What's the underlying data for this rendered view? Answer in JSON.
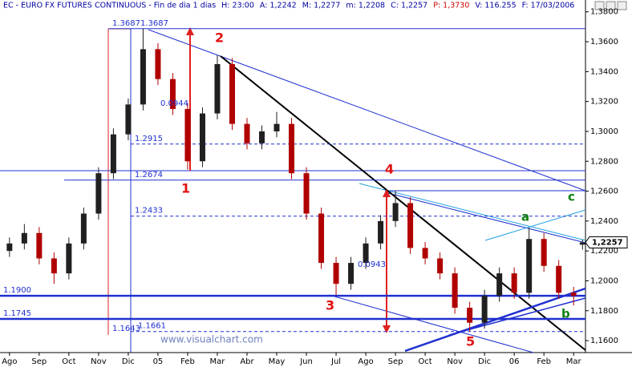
{
  "chart_data": {
    "type": "candlestick",
    "header": [
      "EC - EURO FX FUTURES CONTINUOUS - Fin de dia 1 dias",
      "H: 23:00",
      "A: 1,2242",
      "M: 1,2277",
      "m: 1,2208",
      "C: 1,2257",
      "P: 1,3730",
      "V: 116.255",
      "F: 17/03/2006"
    ],
    "categories": [
      "Ago",
      "Sep",
      "Oct",
      "Nov",
      "Dic",
      "05",
      "Feb",
      "Mar",
      "Abr",
      "May",
      "Jun",
      "Jul",
      "Ago",
      "Sep",
      "Oct",
      "Nov",
      "Dic",
      "06",
      "Feb",
      "Mar"
    ],
    "x": [
      0,
      0.5,
      1,
      1.5,
      2,
      2.5,
      3,
      3.5,
      4,
      4.5,
      5,
      5.5,
      6,
      6.5,
      7,
      7.5,
      8,
      8.5,
      9,
      9.5,
      10,
      10.5,
      11,
      11.5,
      12,
      12.5,
      13,
      13.5,
      14,
      14.5,
      15,
      15.5,
      16,
      16.5,
      17,
      17.5,
      18,
      18.5,
      19,
      19.3
    ],
    "open": [
      1.22,
      1.225,
      1.232,
      1.215,
      1.205,
      1.225,
      1.245,
      1.272,
      1.298,
      1.318,
      1.355,
      1.335,
      1.315,
      1.28,
      1.312,
      1.345,
      1.305,
      1.292,
      1.3,
      1.305,
      1.272,
      1.245,
      1.212,
      1.198,
      1.212,
      1.225,
      1.24,
      1.252,
      1.222,
      1.215,
      1.205,
      1.182,
      1.172,
      1.19,
      1.205,
      1.192,
      1.228,
      1.21,
      1.192,
      1.2242
    ],
    "high": [
      1.229,
      1.238,
      1.236,
      1.219,
      1.229,
      1.249,
      1.276,
      1.302,
      1.322,
      1.3687,
      1.359,
      1.339,
      1.319,
      1.316,
      1.351,
      1.349,
      1.309,
      1.304,
      1.313,
      1.309,
      1.276,
      1.249,
      1.216,
      1.216,
      1.229,
      1.244,
      1.2605,
      1.256,
      1.226,
      1.219,
      1.209,
      1.186,
      1.194,
      1.209,
      1.209,
      1.2355,
      1.232,
      1.214,
      1.196,
      1.2277
    ],
    "low": [
      1.216,
      1.221,
      1.211,
      1.198,
      1.201,
      1.221,
      1.241,
      1.268,
      1.294,
      1.314,
      1.331,
      1.311,
      1.2745,
      1.276,
      1.308,
      1.301,
      1.288,
      1.288,
      1.296,
      1.268,
      1.241,
      1.208,
      1.1905,
      1.194,
      1.208,
      1.221,
      1.236,
      1.218,
      1.211,
      1.201,
      1.178,
      1.1661,
      1.168,
      1.186,
      1.188,
      1.188,
      1.206,
      1.188,
      1.1835,
      1.2208
    ],
    "close": [
      1.225,
      1.232,
      1.215,
      1.205,
      1.225,
      1.245,
      1.272,
      1.298,
      1.318,
      1.355,
      1.335,
      1.315,
      1.28,
      1.312,
      1.345,
      1.305,
      1.292,
      1.3,
      1.305,
      1.272,
      1.245,
      1.212,
      1.198,
      1.212,
      1.225,
      1.24,
      1.252,
      1.222,
      1.215,
      1.205,
      1.182,
      1.172,
      1.19,
      1.205,
      1.192,
      1.228,
      1.21,
      1.192,
      1.19,
      1.2257
    ],
    "up_color": "#202020",
    "down_color": "#b00000",
    "close_label": "1,2257",
    "xlim": [
      -0.32,
      19.4
    ],
    "ylim": [
      1.152,
      1.3879
    ],
    "yticks": [
      {
        "value": 1.16,
        "label": "1,1600"
      },
      {
        "value": 1.18,
        "label": "1,1800"
      },
      {
        "value": 1.2,
        "label": "1,2000"
      },
      {
        "value": 1.22,
        "label": "1,2200"
      },
      {
        "value": 1.24,
        "label": "1,2400"
      },
      {
        "value": 1.26,
        "label": "1,2600"
      },
      {
        "value": 1.28,
        "label": "1,2800"
      },
      {
        "value": 1.3,
        "label": "1,3000"
      },
      {
        "value": 1.32,
        "label": "1,3200"
      },
      {
        "value": 1.34,
        "label": "1,3400"
      },
      {
        "value": 1.36,
        "label": "1,3600"
      },
      {
        "value": 1.38,
        "label": "1,3800"
      }
    ],
    "levels": [
      1.3687,
      1.3687,
      1.2915,
      1.2674,
      1.2433,
      {
        "value": 1.19,
        "label": "1.1900"
      },
      1.1745,
      1.1661,
      1.1643
    ],
    "ratios": [
      "0.0944",
      "0.0943"
    ],
    "waves": [
      "1",
      "2",
      "3",
      "4",
      "5"
    ],
    "corrections": [
      "a",
      "b",
      "c"
    ],
    "watermark": "www.visualchart.com"
  }
}
